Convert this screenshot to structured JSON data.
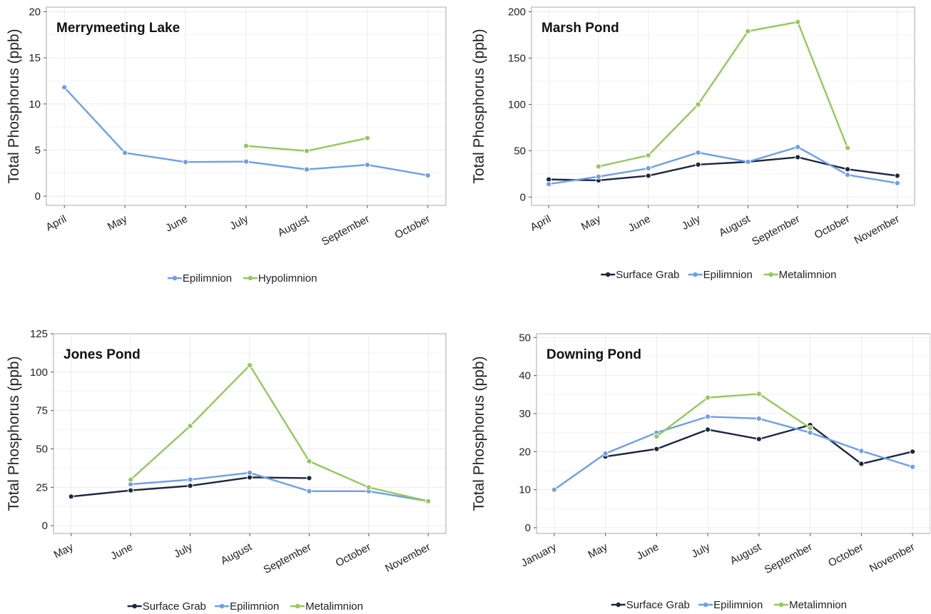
{
  "colors": {
    "surface_grab": "#1c2740",
    "epilimnion": "#6d9eeb",
    "metalimnion": "#93c95a",
    "hypolimnion": "#93c95a",
    "grid": "#ebebeb",
    "frame": "#aaaaaa"
  },
  "chart_data": [
    {
      "type": "line",
      "title": "Merrymeeting Lake",
      "ylabel": "Total Phosphorus (ppb)",
      "xlabel": "",
      "ylim": [
        -1,
        20.5
      ],
      "yticks": [
        0,
        5,
        10,
        15,
        20
      ],
      "categories": [
        "April",
        "May",
        "June",
        "July",
        "August",
        "September",
        "October"
      ],
      "legend_position": "bottom",
      "series": [
        {
          "name": "Epilimnion",
          "color_key": "epilimnion",
          "values": [
            11.8,
            4.7,
            3.7,
            3.75,
            2.9,
            3.4,
            2.25
          ]
        },
        {
          "name": "Hypolimnion",
          "color_key": "hypolimnion",
          "values": [
            null,
            null,
            null,
            5.45,
            4.9,
            6.3,
            null
          ]
        }
      ]
    },
    {
      "type": "line",
      "title": "Marsh Pond",
      "ylabel": "Total Phosphorus (ppb)",
      "xlabel": "",
      "ylim": [
        -9,
        205
      ],
      "yticks": [
        0,
        50,
        100,
        150,
        200
      ],
      "categories": [
        "April",
        "May",
        "June",
        "July",
        "August",
        "September",
        "October",
        "November"
      ],
      "legend_position": "bottom",
      "series": [
        {
          "name": "Surface Grab",
          "color_key": "surface_grab",
          "values": [
            19,
            18,
            23,
            35,
            38,
            43,
            30,
            23
          ]
        },
        {
          "name": "Epilimnion",
          "color_key": "epilimnion",
          "values": [
            14,
            22,
            31,
            48,
            38,
            54,
            24,
            15
          ]
        },
        {
          "name": "Metalimnion",
          "color_key": "metalimnion",
          "values": [
            null,
            33,
            45,
            100,
            179,
            189,
            53,
            null
          ]
        }
      ]
    },
    {
      "type": "line",
      "title": "Jones Pond",
      "ylabel": "Total Phosphorus (ppb)",
      "xlabel": "",
      "ylim": [
        -5,
        125
      ],
      "yticks": [
        0,
        25,
        50,
        75,
        100,
        125
      ],
      "categories": [
        "May",
        "June",
        "July",
        "August",
        "September",
        "October",
        "November"
      ],
      "legend_position": "bottom",
      "series": [
        {
          "name": "Surface Grab",
          "color_key": "surface_grab",
          "values": [
            19,
            23,
            26,
            31.5,
            31,
            null,
            null
          ]
        },
        {
          "name": "Epilimnion",
          "color_key": "epilimnion",
          "values": [
            null,
            27,
            30,
            34.5,
            22.5,
            22.5,
            16
          ]
        },
        {
          "name": "Metalimnion",
          "color_key": "metalimnion",
          "values": [
            null,
            30,
            65,
            104.5,
            42,
            25,
            16
          ]
        }
      ]
    },
    {
      "type": "line",
      "title": "Downing Pond",
      "ylabel": "Total Phosphorus (ppb)",
      "xlabel": "",
      "ylim": [
        -1.5,
        51
      ],
      "yticks": [
        0,
        10,
        20,
        30,
        40,
        50
      ],
      "categories": [
        "January",
        "May",
        "June",
        "July",
        "August",
        "September",
        "October",
        "November"
      ],
      "legend_position": "bottom",
      "series": [
        {
          "name": "Surface Grab",
          "color_key": "surface_grab",
          "values": [
            null,
            18.7,
            20.7,
            25.8,
            23.3,
            27,
            16.8,
            20
          ]
        },
        {
          "name": "Epilimnion",
          "color_key": "epilimnion",
          "values": [
            10,
            19.5,
            25,
            29.2,
            28.7,
            25,
            20.2,
            16
          ]
        },
        {
          "name": "Metalimnion",
          "color_key": "metalimnion",
          "values": [
            null,
            null,
            24,
            34.2,
            35.2,
            26.2,
            null,
            null
          ]
        }
      ]
    }
  ]
}
